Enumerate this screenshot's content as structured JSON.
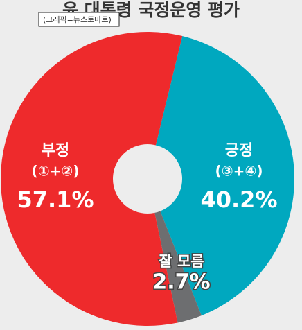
{
  "chart_data": {
    "type": "donut",
    "title": "윤 대통령 국정운영 평가",
    "credit": "(그래픽=뉴스토마토)",
    "label_lines": [
      [
        "긍정",
        "(③+④)"
      ],
      [
        "잘 모름"
      ],
      [
        "부정",
        "(①+②)"
      ]
    ],
    "values": [
      40.2,
      2.7,
      57.1
    ],
    "value_labels": [
      "40.2%",
      "2.7%",
      "57.1%"
    ],
    "colors": [
      "#00a8bf",
      "#6d6e70",
      "#ee2a2c"
    ]
  }
}
